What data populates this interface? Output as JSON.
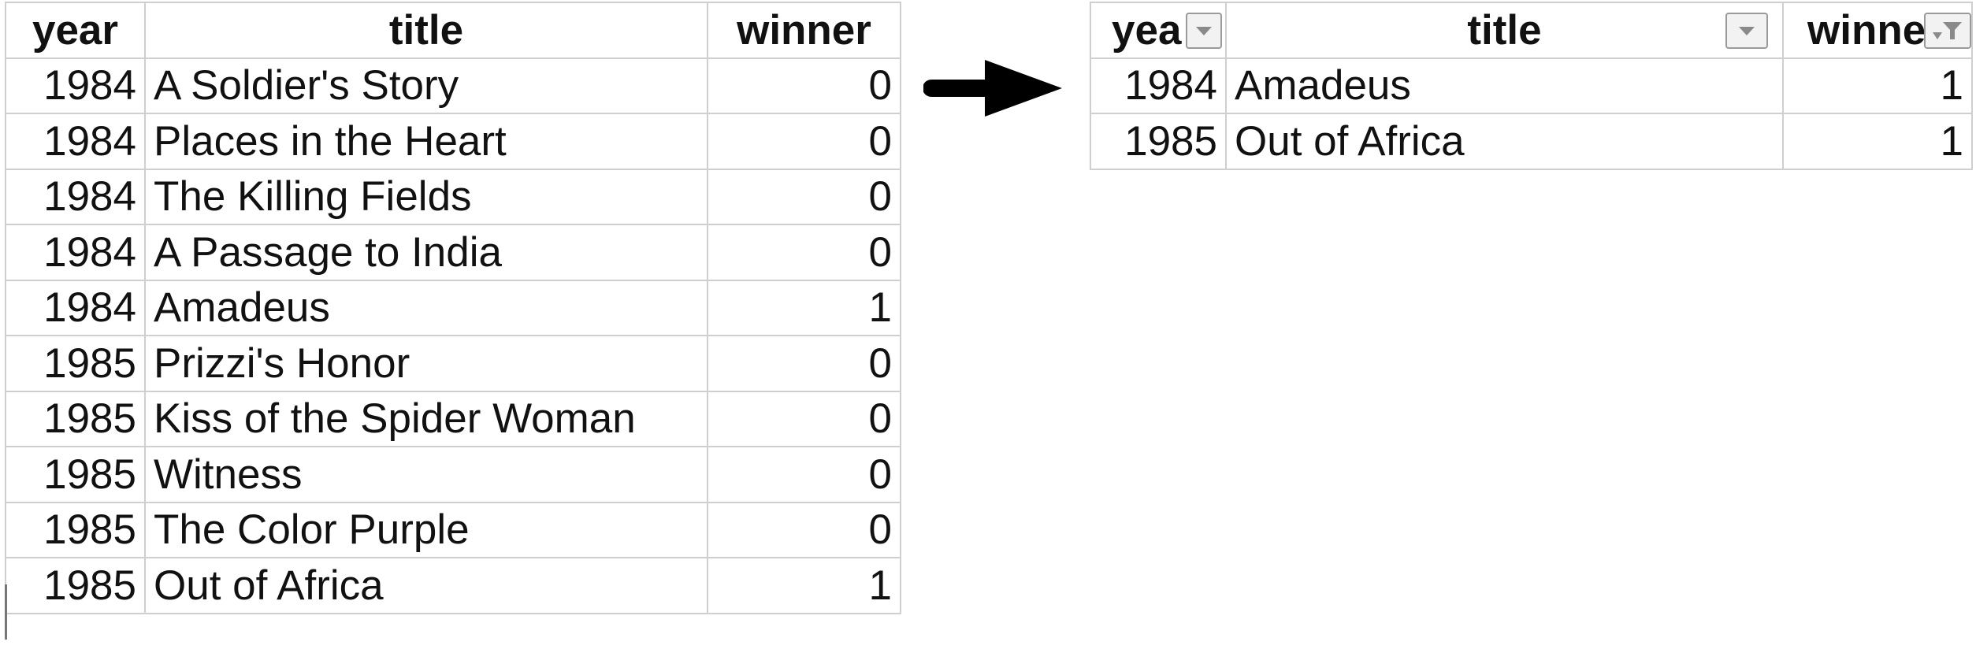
{
  "left_table": {
    "columns": [
      "year",
      "title",
      "winner"
    ],
    "rows": [
      {
        "year": "1984",
        "title": "A Soldier's Story",
        "winner": "0"
      },
      {
        "year": "1984",
        "title": "Places in the Heart",
        "winner": "0"
      },
      {
        "year": "1984",
        "title": "The Killing Fields",
        "winner": "0"
      },
      {
        "year": "1984",
        "title": "A Passage to India",
        "winner": "0"
      },
      {
        "year": "1984",
        "title": "Amadeus",
        "winner": "1"
      },
      {
        "year": "1985",
        "title": "Prizzi's Honor",
        "winner": "0"
      },
      {
        "year": "1985",
        "title": "Kiss of the Spider Woman",
        "winner": "0"
      },
      {
        "year": "1985",
        "title": "Witness",
        "winner": "0"
      },
      {
        "year": "1985",
        "title": "The Color Purple",
        "winner": "0"
      },
      {
        "year": "1985",
        "title": "Out of Africa",
        "winner": "1"
      }
    ]
  },
  "right_table": {
    "columns": [
      "yea",
      "title",
      "winne"
    ],
    "filter_icons": [
      "dropdown-arrow-icon",
      "dropdown-arrow-icon",
      "filter-active-icon"
    ],
    "rows": [
      {
        "year": "1984",
        "title": "Amadeus",
        "winner": "1"
      },
      {
        "year": "1985",
        "title": "Out of Africa",
        "winner": "1"
      }
    ]
  },
  "arrow_icon": "right-arrow-icon",
  "colors": {
    "grid": "#cfcfcf",
    "text": "#111111",
    "filter_button_border": "#9a9a9a",
    "filter_button_fill": "#f2f2f2",
    "arrow": "#000000"
  }
}
